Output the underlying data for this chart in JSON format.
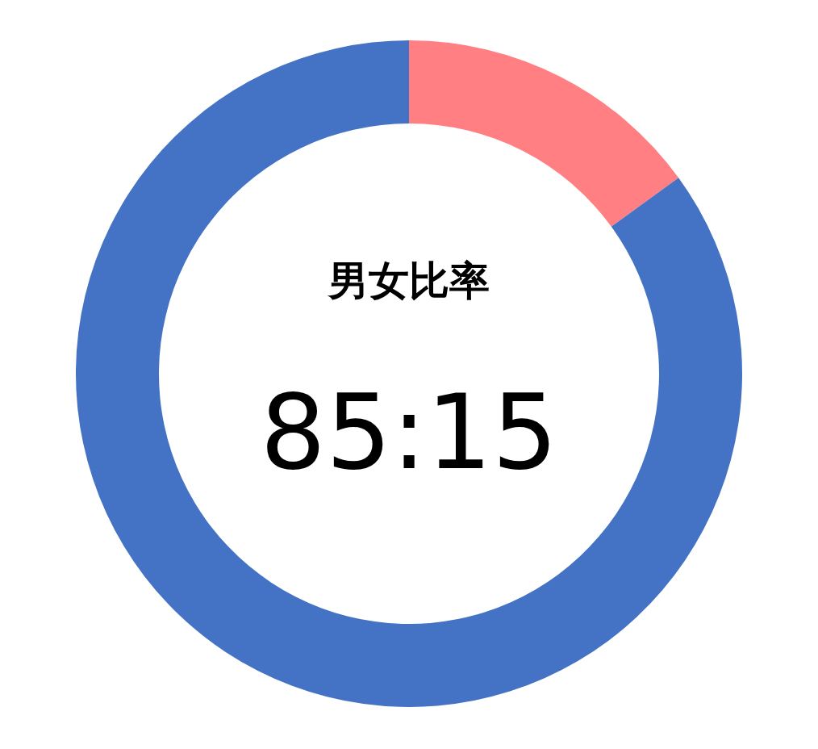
{
  "chart_data": {
    "type": "donut",
    "title": "男女比率",
    "categories": [
      null,
      null
    ],
    "values": [
      15,
      85
    ],
    "colors": [
      "#ff7f82",
      "#4472c4"
    ],
    "annotations": [
      "85:15"
    ]
  }
}
